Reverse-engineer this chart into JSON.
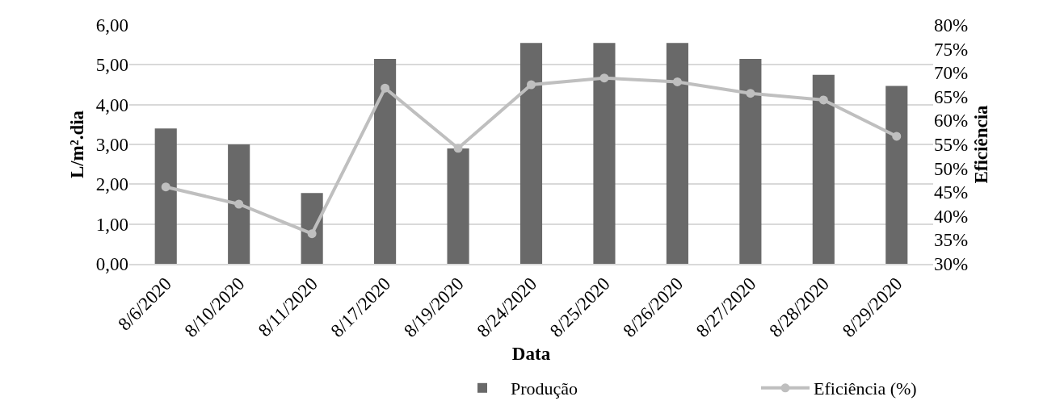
{
  "chart_data": {
    "type": "bar",
    "categories": [
      "8/6/2020",
      "8/10/2020",
      "8/11/2020",
      "8/17/2020",
      "8/19/2020",
      "8/24/2020",
      "8/25/2020",
      "8/26/2020",
      "8/27/2020",
      "8/28/2020",
      "8/29/2020"
    ],
    "series": [
      {
        "name": "Produção",
        "color": "#696969",
        "values": [
          3.4,
          3.0,
          1.78,
          5.15,
          2.9,
          5.55,
          5.55,
          5.55,
          5.15,
          4.75,
          4.47
        ]
      },
      {
        "name": "Eficiência (%)",
        "type": "line",
        "axis": "y2",
        "color": "#bfbfbf",
        "marker": "circle",
        "line_style": "solid",
        "values": [
          46.1,
          42.5,
          36.3,
          66.8,
          54.2,
          67.5,
          68.9,
          68.1,
          65.7,
          64.3,
          56.7
        ]
      }
    ],
    "xlabel": "Data",
    "ylabel": "L/m².dia",
    "y2label": "Eficiência",
    "ylim": [
      0,
      6
    ],
    "yticks": [
      {
        "value": 0,
        "label": "0,00"
      },
      {
        "value": 1,
        "label": "1,00"
      },
      {
        "value": 2,
        "label": "2,00"
      },
      {
        "value": 3,
        "label": "3,00"
      },
      {
        "value": 4,
        "label": "4,00"
      },
      {
        "value": 5,
        "label": "5,00"
      },
      {
        "value": 6,
        "label": "6,00"
      }
    ],
    "y2lim": [
      30,
      80
    ],
    "y2ticks": [
      {
        "value": 30,
        "label": "30%"
      },
      {
        "value": 35,
        "label": "35%"
      },
      {
        "value": 40,
        "label": "40%"
      },
      {
        "value": 45,
        "label": "45%"
      },
      {
        "value": 50,
        "label": "50%"
      },
      {
        "value": 55,
        "label": "55%"
      },
      {
        "value": 60,
        "label": "60%"
      },
      {
        "value": 65,
        "label": "65%"
      },
      {
        "value": 70,
        "label": "70%"
      },
      {
        "value": 75,
        "label": "75%"
      },
      {
        "value": 80,
        "label": "80%"
      }
    ],
    "grid": "y",
    "legend": "bottom"
  }
}
